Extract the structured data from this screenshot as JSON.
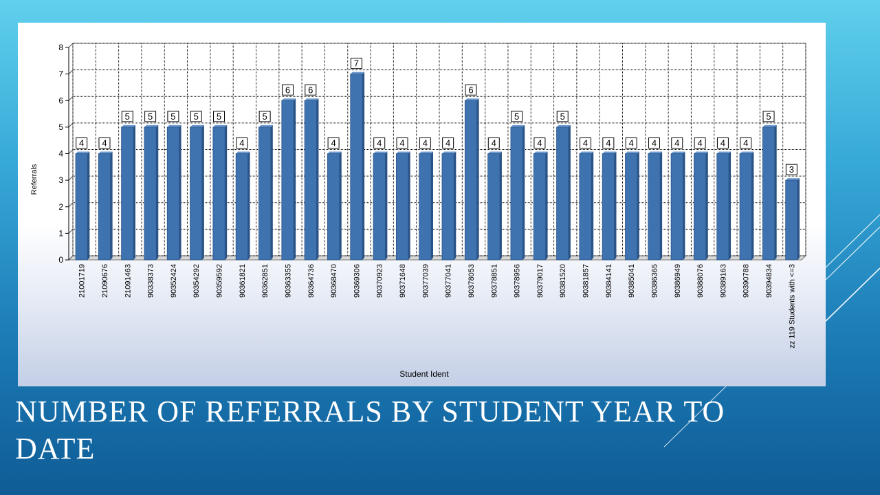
{
  "slide": {
    "title": "NUMBER OF REFERRALS BY STUDENT YEAR TO DATE"
  },
  "colors": {
    "bar": "#3f73b0",
    "bar_highlight": "#6d9ad0",
    "title": "#ffffff"
  },
  "chart_data": {
    "type": "bar",
    "title": "",
    "xlabel": "Student Ident",
    "ylabel": "Referrals",
    "ylim": [
      0,
      8
    ],
    "yticks": [
      0,
      1,
      2,
      3,
      4,
      5,
      6,
      7,
      8
    ],
    "grid": true,
    "data_labels": true,
    "categories": [
      "21001719",
      "21090676",
      "21091463",
      "90338373",
      "90352424",
      "90354292",
      "90359592",
      "90361821",
      "90362851",
      "90363355",
      "90364736",
      "90368470",
      "90369306",
      "90370923",
      "90371648",
      "90377039",
      "90377041",
      "90378053",
      "90378851",
      "90378956",
      "90379017",
      "90381520",
      "90381857",
      "90384141",
      "90385041",
      "90386365",
      "90386949",
      "90388076",
      "90389163",
      "90390788",
      "90394834",
      "zz 119 Students with <=3"
    ],
    "values": [
      4,
      4,
      5,
      5,
      5,
      5,
      5,
      4,
      5,
      6,
      6,
      4,
      7,
      4,
      4,
      4,
      4,
      6,
      4,
      5,
      4,
      5,
      4,
      4,
      4,
      4,
      4,
      4,
      4,
      4,
      5,
      3
    ]
  }
}
